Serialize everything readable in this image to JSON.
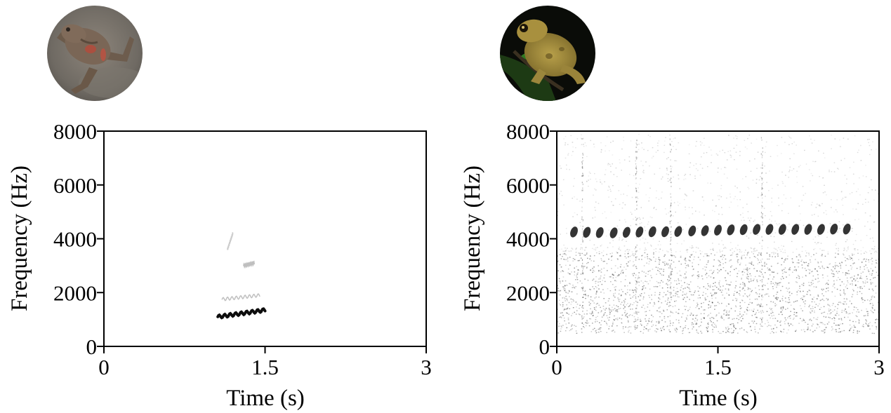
{
  "chart_data": [
    {
      "type": "spectrogram",
      "photo": "frog-photo-brown-on-rock",
      "xlabel": "Time (s)",
      "ylabel": "Frequency (Hz)",
      "xlim": [
        0,
        3
      ],
      "ylim": [
        0,
        8000
      ],
      "xticks": [
        "0",
        "1.5",
        "3"
      ],
      "yticks": [
        "0",
        "2000",
        "4000",
        "6000",
        "8000"
      ],
      "background_noise": false,
      "call_traces": [
        {
          "name": "fundamental",
          "start_s": 1.06,
          "end_s": 1.5,
          "start_hz": 1100,
          "end_hz": 1350,
          "intensity": 0.95
        },
        {
          "name": "second-harmonic",
          "start_s": 1.1,
          "end_s": 1.45,
          "start_hz": 1750,
          "end_hz": 1900,
          "intensity": 0.25
        },
        {
          "name": "third-harmonic",
          "start_s": 1.3,
          "end_s": 1.4,
          "start_hz": 3000,
          "end_hz": 3100,
          "intensity": 0.25
        },
        {
          "name": "fourth-harmonic",
          "start_s": 1.15,
          "end_s": 1.2,
          "start_hz": 3600,
          "end_hz": 4200,
          "intensity": 0.2
        }
      ],
      "pulses": []
    },
    {
      "type": "spectrogram",
      "photo": "frog-photo-green-on-leaf",
      "xlabel": "Time (s)",
      "ylabel": "Frequency (Hz)",
      "xlim": [
        0,
        3
      ],
      "ylim": [
        0,
        8000
      ],
      "xticks": [
        "0",
        "1.5",
        "3"
      ],
      "yticks": [
        "0",
        "2000",
        "4000",
        "6000",
        "8000"
      ],
      "background_noise": true,
      "call_traces": [],
      "pulses": [
        {
          "time_s": 0.16,
          "freq_hz": 4250
        },
        {
          "time_s": 0.28,
          "freq_hz": 4240
        },
        {
          "time_s": 0.4,
          "freq_hz": 4230
        },
        {
          "time_s": 0.53,
          "freq_hz": 4220
        },
        {
          "time_s": 0.65,
          "freq_hz": 4240
        },
        {
          "time_s": 0.77,
          "freq_hz": 4250
        },
        {
          "time_s": 0.89,
          "freq_hz": 4260
        },
        {
          "time_s": 1.01,
          "freq_hz": 4260
        },
        {
          "time_s": 1.13,
          "freq_hz": 4270
        },
        {
          "time_s": 1.26,
          "freq_hz": 4290
        },
        {
          "time_s": 1.38,
          "freq_hz": 4300
        },
        {
          "time_s": 1.5,
          "freq_hz": 4320
        },
        {
          "time_s": 1.62,
          "freq_hz": 4330
        },
        {
          "time_s": 1.74,
          "freq_hz": 4340
        },
        {
          "time_s": 1.86,
          "freq_hz": 4350
        },
        {
          "time_s": 1.98,
          "freq_hz": 4350
        },
        {
          "time_s": 2.1,
          "freq_hz": 4350
        },
        {
          "time_s": 2.22,
          "freq_hz": 4350
        },
        {
          "time_s": 2.34,
          "freq_hz": 4350
        },
        {
          "time_s": 2.46,
          "freq_hz": 4350
        },
        {
          "time_s": 2.58,
          "freq_hz": 4360
        },
        {
          "time_s": 2.7,
          "freq_hz": 4360
        }
      ]
    }
  ]
}
